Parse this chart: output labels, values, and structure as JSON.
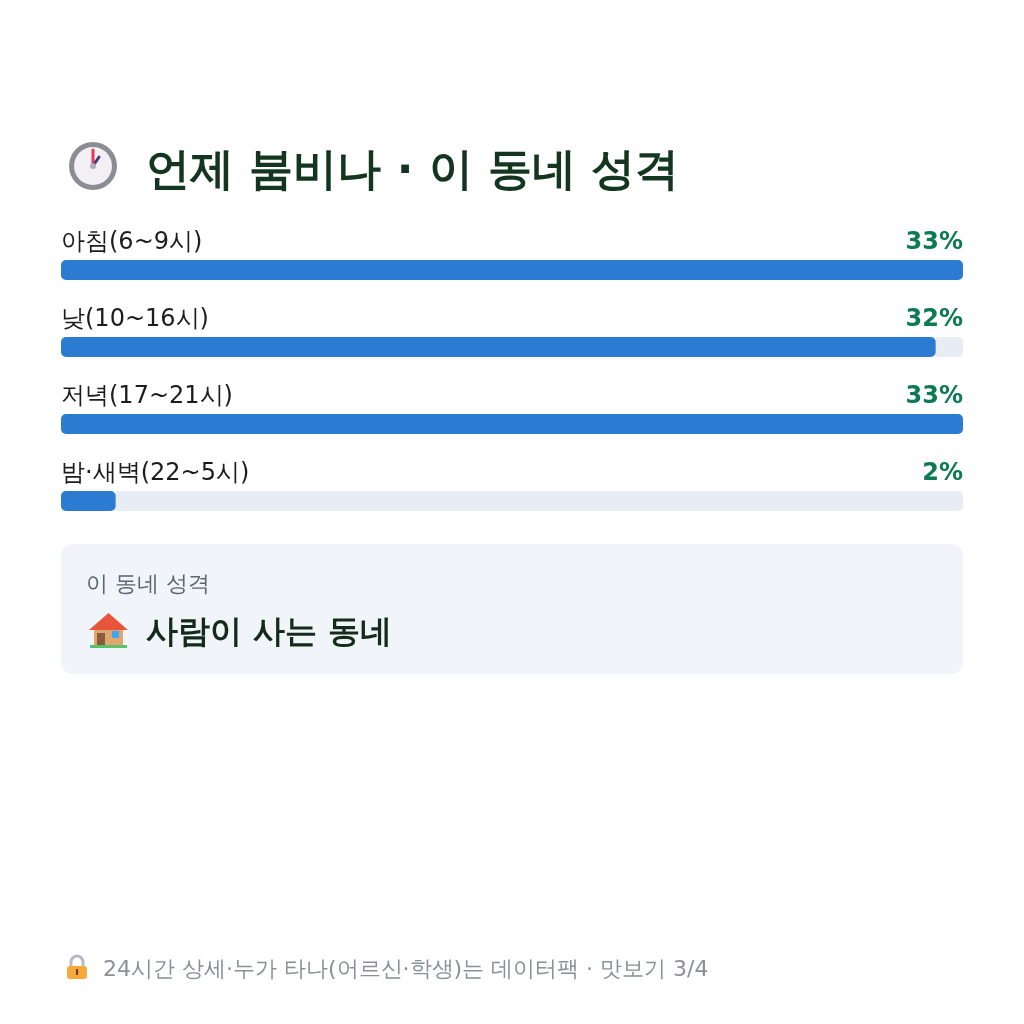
{
  "chart_data": {
    "type": "bar",
    "orientation": "horizontal",
    "title": "언제 붐비나 · 이 동네 성격",
    "categories": [
      "아침(6~9시)",
      "낮(10~16시)",
      "저녁(17~21시)",
      "밤·새벽(22~5시)"
    ],
    "values": [
      33,
      32,
      33,
      2
    ],
    "color": "#2b7bd3",
    "value_labels": [
      "33%",
      "32%",
      "33%",
      "2%"
    ],
    "annotations": [
      "이 동네 성격",
      "사람이 사는 동네",
      "24시간 상세·누가 타나(어르신·학생)는 데이터팩 · 맛보기 3/4"
    ]
  }
}
